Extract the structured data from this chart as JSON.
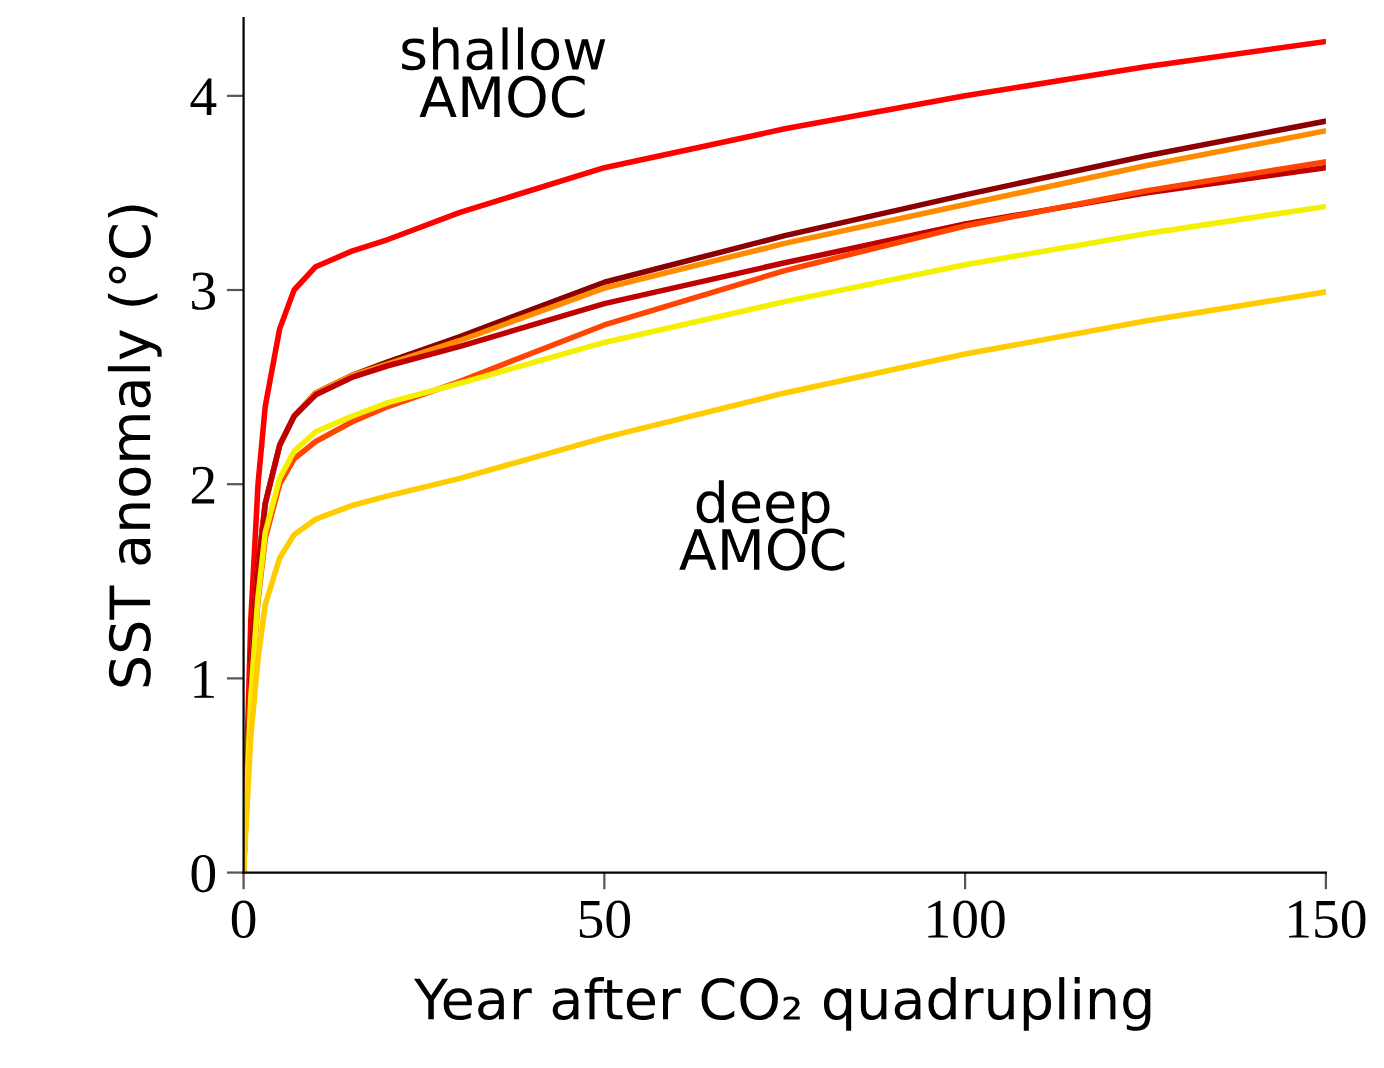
{
  "chart_data": {
    "type": "line",
    "xlabel": "Year after CO₂ quadrupling",
    "ylabel": "SST anomaly (°C)",
    "annotations": [
      "shallow\nAMOC",
      "deep\nAMOC"
    ],
    "x": [
      0,
      1,
      2,
      3,
      5,
      7,
      10,
      15,
      20,
      30,
      50,
      75,
      100,
      125,
      150
    ],
    "xlim": [
      0,
      150
    ],
    "xticks": [
      0,
      50,
      100,
      150
    ],
    "ylim": [
      0,
      4.4
    ],
    "yticks": [
      0,
      1,
      2,
      3,
      4
    ],
    "grid": false,
    "marker": "none",
    "line_style": "solid",
    "series": [
      {
        "color": "#ff0000",
        "values": [
          0,
          1.3,
          2.0,
          2.4,
          2.8,
          3.0,
          3.12,
          3.2,
          3.26,
          3.4,
          3.63,
          3.83,
          4.0,
          4.15,
          4.28
        ]
      },
      {
        "color": "#8b0000",
        "values": [
          null,
          1.1,
          1.58,
          1.9,
          2.2,
          2.35,
          2.47,
          2.56,
          2.63,
          2.76,
          3.04,
          3.28,
          3.49,
          3.69,
          3.87
        ]
      },
      {
        "color": "#ff8c00",
        "values": [
          0,
          1.0,
          1.55,
          1.9,
          2.2,
          2.35,
          2.47,
          2.56,
          2.62,
          2.74,
          3.01,
          3.24,
          3.44,
          3.64,
          3.82
        ]
      },
      {
        "color": "#c00000",
        "values": [
          0,
          1.0,
          1.55,
          1.9,
          2.2,
          2.35,
          2.46,
          2.55,
          2.61,
          2.71,
          2.93,
          3.14,
          3.34,
          3.5,
          3.63
        ]
      },
      {
        "color": "#ff4500",
        "values": [
          0,
          0.9,
          1.4,
          1.72,
          2.0,
          2.13,
          2.22,
          2.32,
          2.4,
          2.53,
          2.82,
          3.1,
          3.33,
          3.51,
          3.66
        ]
      },
      {
        "color": "#f5f000",
        "values": [
          0,
          0.9,
          1.42,
          1.75,
          2.03,
          2.17,
          2.27,
          2.35,
          2.42,
          2.52,
          2.73,
          2.94,
          3.13,
          3.29,
          3.43
        ]
      },
      {
        "color": "#ffcc00",
        "values": [
          0,
          0.7,
          1.1,
          1.38,
          1.62,
          1.74,
          1.82,
          1.89,
          1.94,
          2.03,
          2.24,
          2.47,
          2.67,
          2.84,
          2.99
        ]
      }
    ]
  }
}
